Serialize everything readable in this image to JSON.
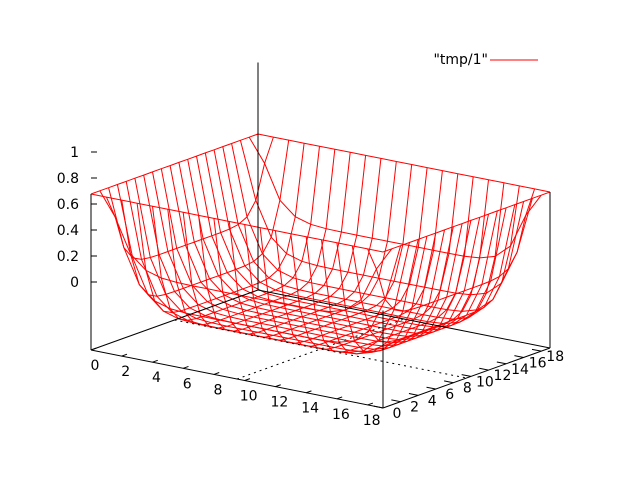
{
  "chart_data": {
    "type": "surface",
    "x_range": [
      0,
      19
    ],
    "y_range": [
      0,
      19
    ],
    "z_range": [
      -0.2,
      1
    ],
    "x_ticks": [
      "0",
      "2",
      "4",
      "6",
      "8",
      "10",
      "12",
      "14",
      "16",
      "18"
    ],
    "y_ticks": [
      "0",
      "2",
      "4",
      "6",
      "8",
      "10",
      "12",
      "14",
      "16",
      "18"
    ],
    "z_ticks": [
      "0",
      "0.2",
      "0.4",
      "0.6",
      "0.8",
      "1"
    ],
    "x_tick_values": [
      0,
      2,
      4,
      6,
      8,
      10,
      12,
      14,
      16,
      18
    ],
    "y_tick_values": [
      0,
      2,
      4,
      6,
      8,
      10,
      12,
      14,
      16,
      18
    ],
    "z_tick_values": [
      0,
      0.2,
      0.4,
      0.6,
      0.8,
      1
    ],
    "grid_n": 20,
    "surface_formula": "z = ((x-9.5)/9.5)^8 + ((y-9.5)/9.5)^8 (approximate bowl, corners at 1)",
    "legend": {
      "label": "\"tmp/1\"",
      "placement": "top-right"
    },
    "colors": {
      "series": "#ff0000",
      "axes": "#000000"
    },
    "grid": false
  }
}
